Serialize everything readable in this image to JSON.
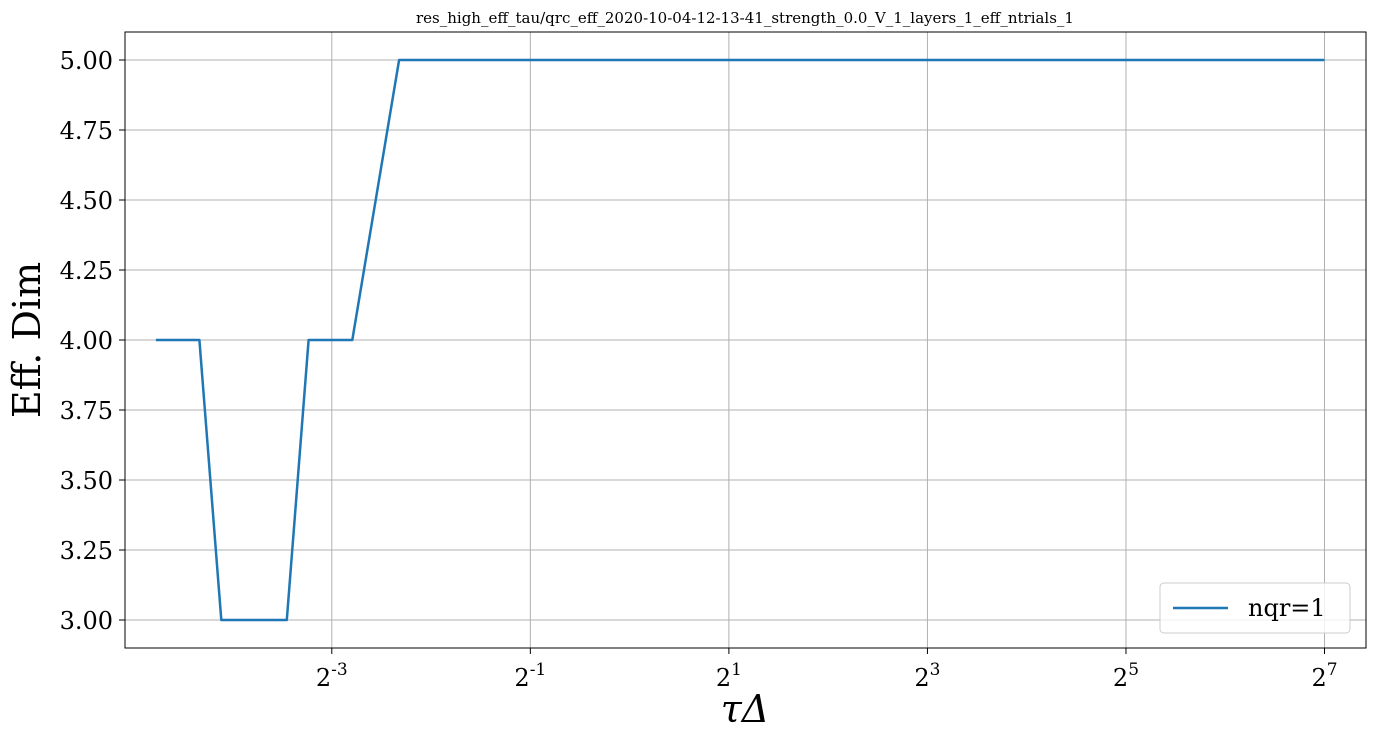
{
  "chart_data": {
    "type": "line",
    "title": "res_high_eff_tau/qrc_eff_2020-10-04-12-13-41_strength_0.0_V_1_layers_1_eff_ntrials_1",
    "xlabel": "τΔ",
    "ylabel": "Eff. Dim",
    "xscale": "log2",
    "xlim": [
      0.0295,
      171.0
    ],
    "ylim": [
      2.9,
      5.1
    ],
    "grid": true,
    "legend_position": "lower right",
    "x_ticks": [
      {
        "value": 0.125,
        "base": "2",
        "exp": "-3"
      },
      {
        "value": 0.5,
        "base": "2",
        "exp": "-1"
      },
      {
        "value": 2,
        "base": "2",
        "exp": "1"
      },
      {
        "value": 8,
        "base": "2",
        "exp": "3"
      },
      {
        "value": 32,
        "base": "2",
        "exp": "5"
      },
      {
        "value": 128,
        "base": "2",
        "exp": "7"
      }
    ],
    "y_ticks": [
      {
        "value": 3.0,
        "label": "3.00"
      },
      {
        "value": 3.25,
        "label": "3.25"
      },
      {
        "value": 3.5,
        "label": "3.50"
      },
      {
        "value": 3.75,
        "label": "3.75"
      },
      {
        "value": 4.0,
        "label": "4.00"
      },
      {
        "value": 4.25,
        "label": "4.25"
      },
      {
        "value": 4.5,
        "label": "4.50"
      },
      {
        "value": 4.75,
        "label": "4.75"
      },
      {
        "value": 5.0,
        "label": "5.00"
      }
    ],
    "series": [
      {
        "name": "nqr=1",
        "color": "#1f77b4",
        "x": [
          0.0366,
          0.0426,
          0.0496,
          0.0578,
          0.0673,
          0.0784,
          0.0913,
          0.1063,
          0.1238,
          0.1442,
          0.2,
          0.5,
          2.0,
          8.0,
          32.0,
          128.0
        ],
        "y": [
          4,
          4,
          4,
          3,
          3,
          3,
          3,
          4,
          4,
          4,
          5,
          5,
          5,
          5,
          5,
          5
        ]
      }
    ]
  },
  "colors": {
    "grid": "#b0b0b0",
    "axes": "#000000",
    "legend_border": "#cccccc"
  }
}
